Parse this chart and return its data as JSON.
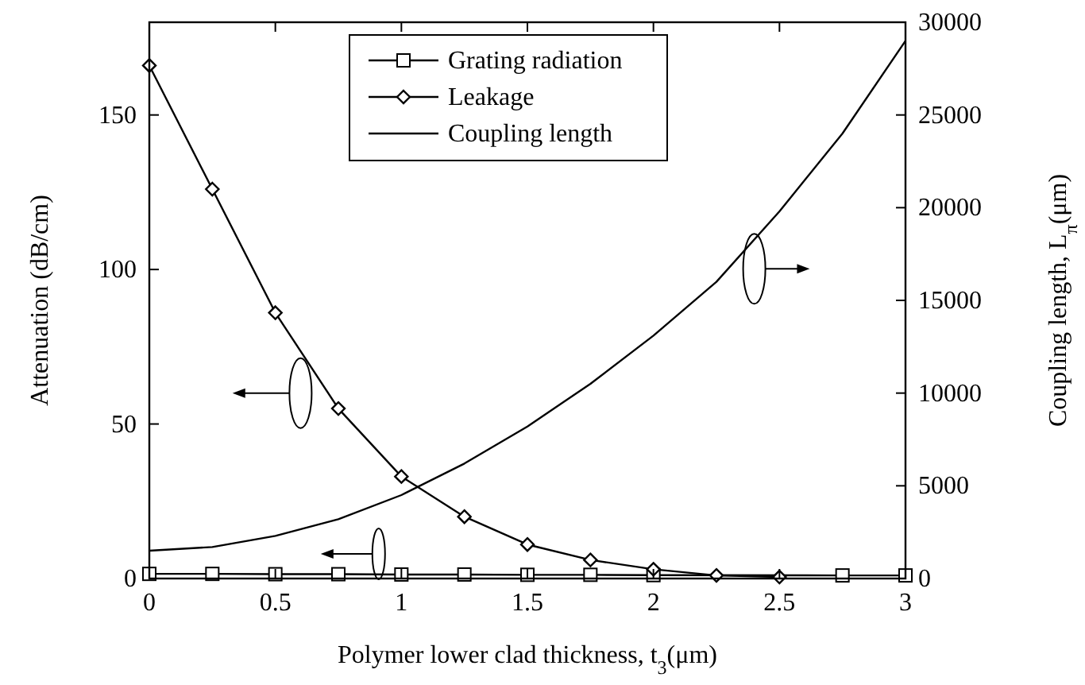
{
  "chart_data": {
    "type": "line",
    "xlabel": "Polymer lower clad thickness, t$_{3}$(μm)",
    "ylabel": "Attenuation (dB/cm)",
    "y2label": "Coupling length, L$_{π}$(μm)",
    "xlim": [
      0,
      3
    ],
    "xticks": [
      0,
      0.5,
      1,
      1.5,
      2,
      2.5,
      3
    ],
    "ylim": [
      0,
      180
    ],
    "yticks": [
      0,
      50,
      100,
      150
    ],
    "y2lim": [
      0,
      30000
    ],
    "y2ticks": [
      0,
      5000,
      10000,
      15000,
      20000,
      25000,
      30000
    ],
    "legend": "top",
    "grid": false,
    "series": [
      {
        "name": "Grating radiation",
        "color": "#000000",
        "marker": "square",
        "x": [
          0,
          0.25,
          0.5,
          0.75,
          1,
          1.25,
          1.5,
          1.75,
          2,
          2.25,
          2.5,
          2.75,
          3
        ],
        "values": [
          1.5,
          1.5,
          1.4,
          1.4,
          1.3,
          1.3,
          1.2,
          1.2,
          1.1,
          null,
          null,
          1,
          1
        ]
      },
      {
        "name": "Leakage",
        "color": "#000000",
        "marker": "diamond",
        "x": [
          0,
          0.25,
          0.5,
          0.75,
          1,
          1.25,
          1.5,
          1.75,
          2,
          2.25,
          2.5
        ],
        "values": [
          166,
          126,
          86,
          55,
          33,
          20,
          11,
          6,
          3,
          1,
          0.5
        ]
      },
      {
        "name": "Coupling length",
        "color": "#000000",
        "marker": "none",
        "axis": "y2",
        "x": [
          0,
          0.25,
          0.5,
          0.75,
          1,
          1.25,
          1.5,
          1.75,
          2,
          2.25,
          2.5,
          2.75,
          3
        ],
        "values": [
          1500,
          1700,
          2300,
          3200,
          4500,
          6200,
          8200,
          10500,
          13100,
          16000,
          19800,
          24000,
          29000
        ]
      }
    ]
  }
}
